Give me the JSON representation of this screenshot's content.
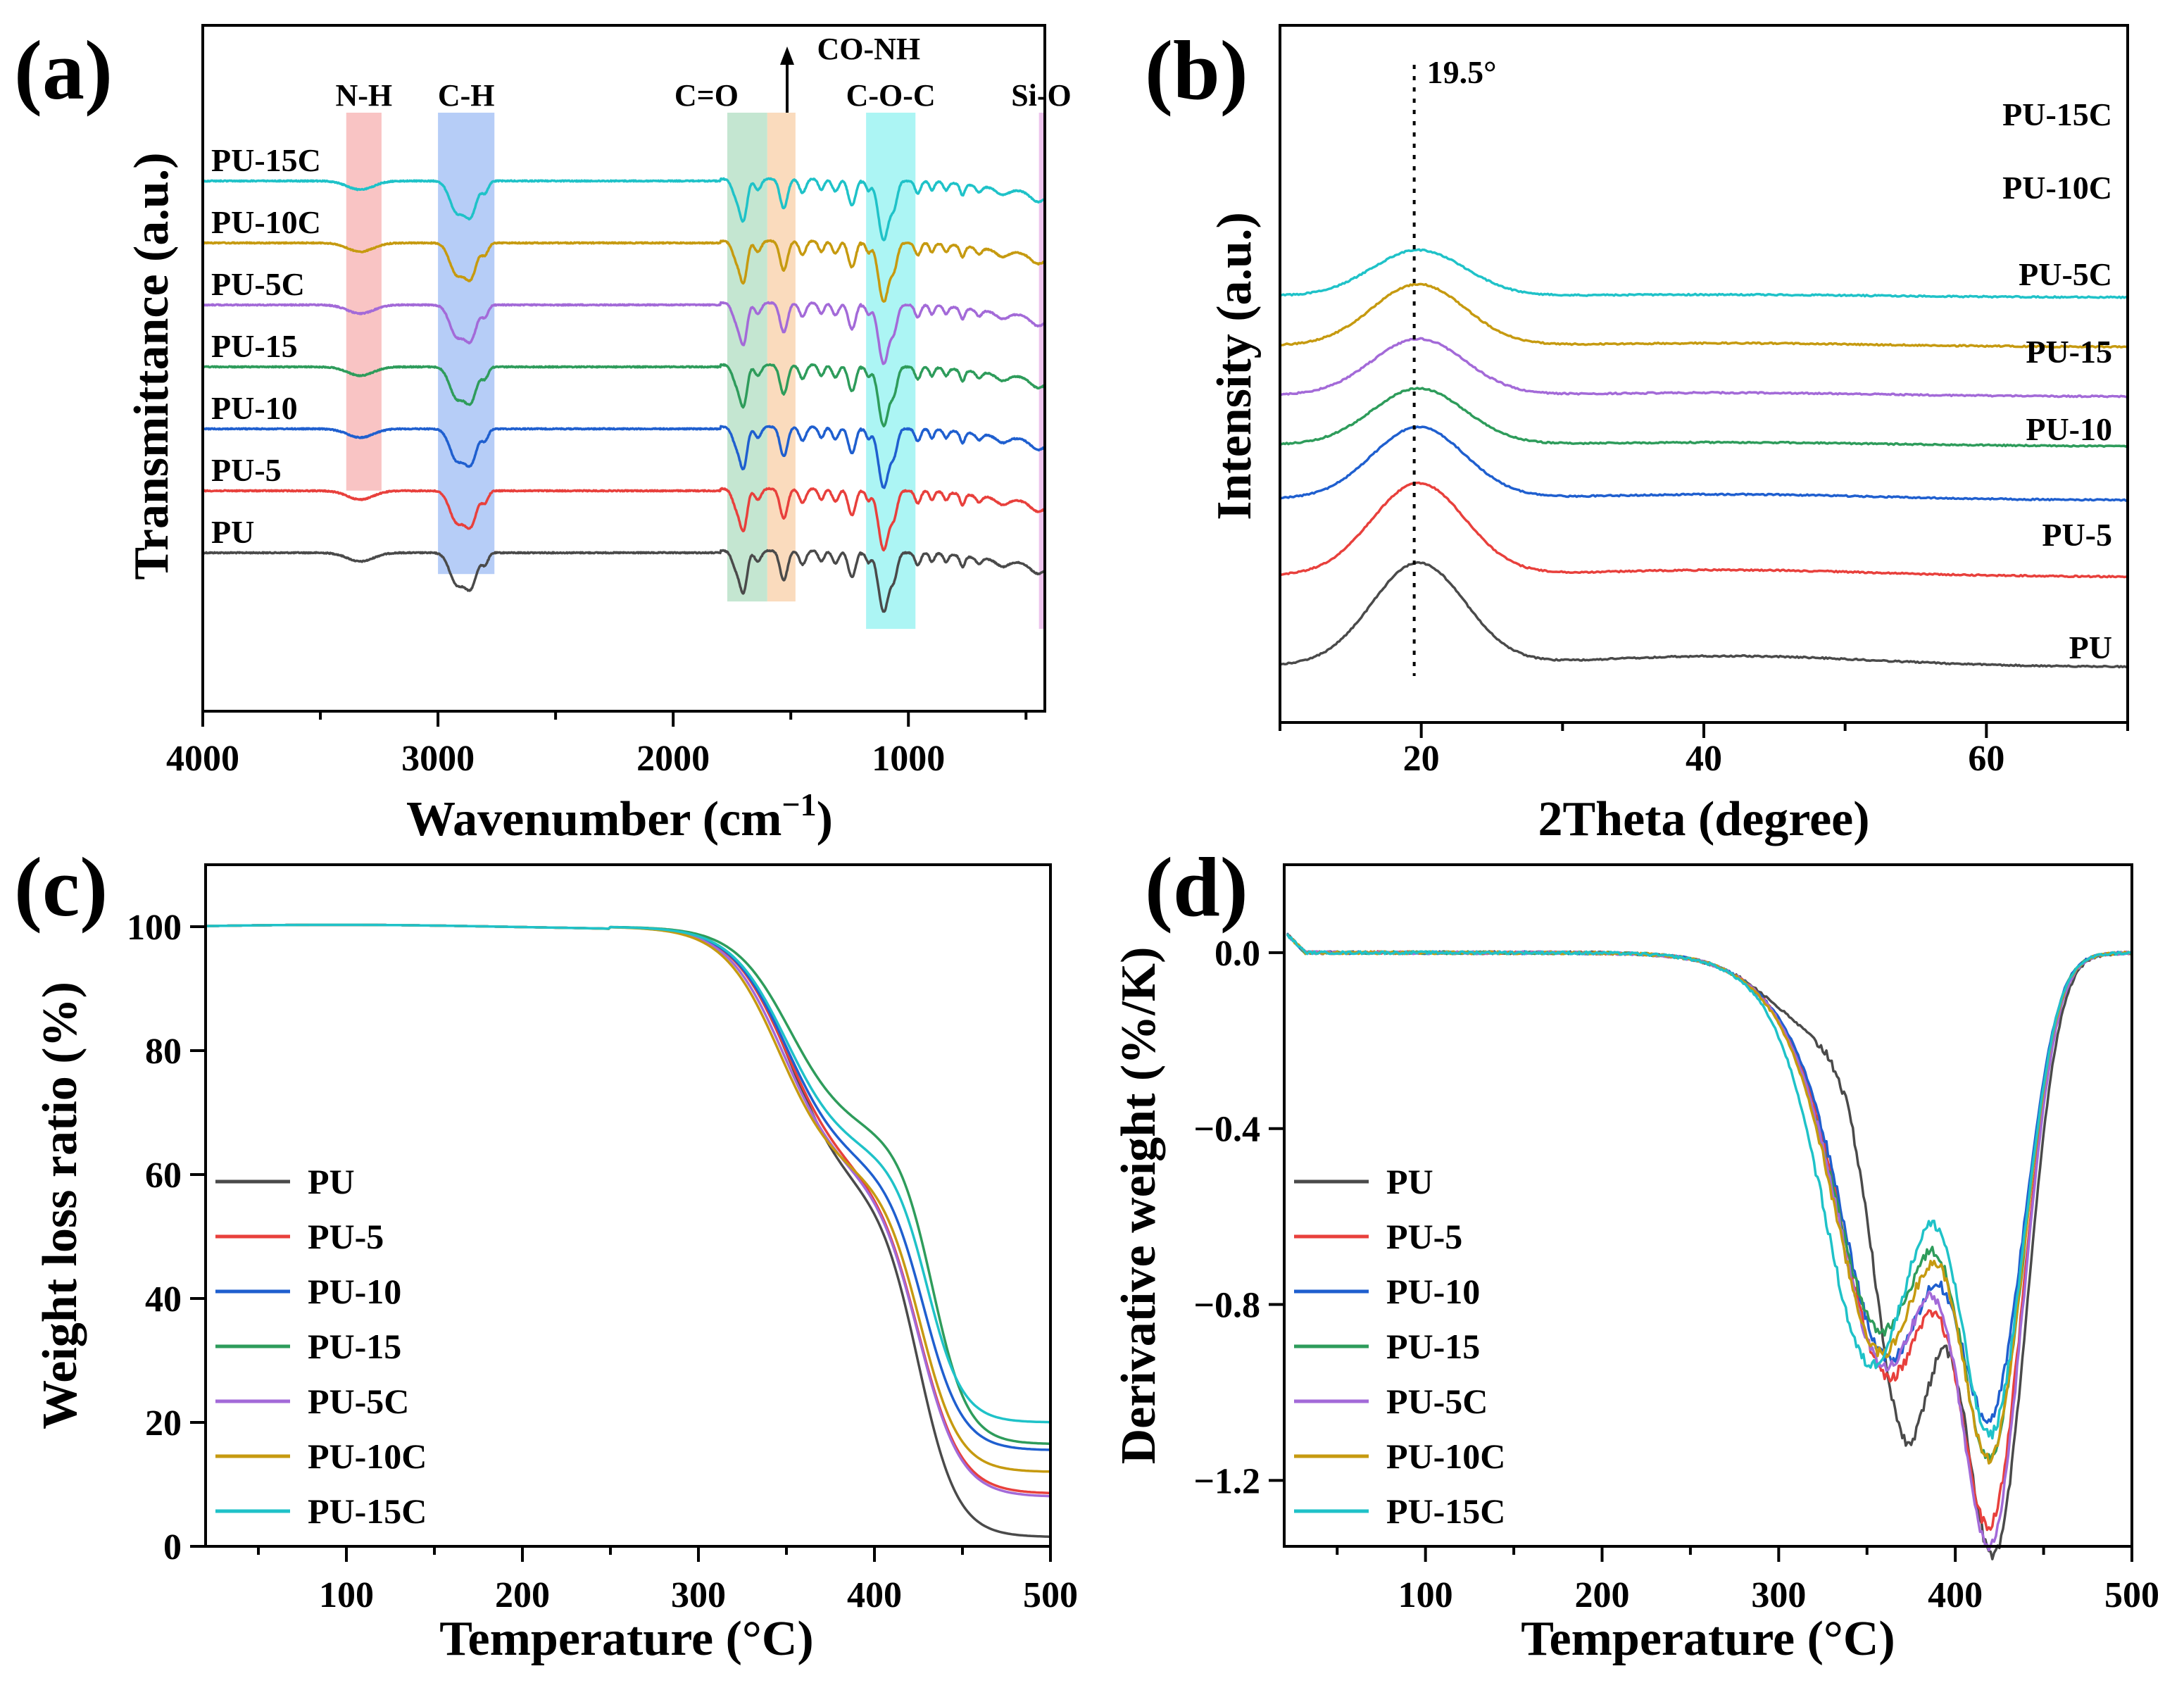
{
  "chart_data": [
    {
      "panel": "(a)",
      "type": "line",
      "xlabel": "Wavenumber (cm",
      "xlabel_sup": "−1",
      "xlabel_close": ")",
      "ylabel": "Transmittance (a.u.)",
      "xlim": [
        4000,
        420
      ],
      "xticks": [
        "4000",
        "3000",
        "2000",
        "1000"
      ],
      "x_tick_values": [
        4000,
        3000,
        2000,
        1000
      ],
      "series_names": [
        "PU",
        "PU-5",
        "PU-10",
        "PU-15",
        "PU-5C",
        "PU-10C",
        "PU-15C"
      ],
      "series_colors": [
        "#4a4a4a",
        "#e8403c",
        "#1f5fcf",
        "#2e9c5b",
        "#a36ad8",
        "#c69a10",
        "#1fc2c8"
      ],
      "series_offsets": [
        0,
        1,
        2,
        3,
        4,
        5,
        6
      ],
      "bands": [
        {
          "label": "N-H",
          "from": 3390,
          "to": 3240,
          "color": "#f6a5a5",
          "depth": 0.74
        },
        {
          "label": "C-H",
          "from": 3000,
          "to": 2760,
          "color": "#8fb2f2",
          "depth": 0.8
        },
        {
          "label": "C=O",
          "from": 1770,
          "to": 1600,
          "color": "#a5d9b8",
          "depth": 0.84
        },
        {
          "label": "CO-NH",
          "from": 1600,
          "to": 1480,
          "color": "#f8c89a",
          "depth": 0.84
        },
        {
          "label": "C-O-C",
          "from": 1180,
          "to": 970,
          "color": "#7ff0ee",
          "depth": 0.88
        },
        {
          "label": "Si-O",
          "from": 445,
          "to": 425,
          "color": "#e4a4e4",
          "depth": 0.88
        }
      ],
      "peaks": [
        {
          "pos": 3330,
          "width": 55,
          "depth": 0.28
        },
        {
          "pos": 2920,
          "width": 30,
          "depth": 1.0
        },
        {
          "pos": 2860,
          "width": 25,
          "depth": 1.05
        },
        {
          "pos": 2800,
          "width": 14,
          "depth": 0.35
        },
        {
          "pos": 1730,
          "width": 18,
          "depth": 0.6
        },
        {
          "pos": 1700,
          "width": 15,
          "depth": 1.2
        },
        {
          "pos": 1640,
          "width": 14,
          "depth": 0.35
        },
        {
          "pos": 1530,
          "width": 16,
          "depth": 0.95
        },
        {
          "pos": 1450,
          "width": 14,
          "depth": 0.45
        },
        {
          "pos": 1370,
          "width": 12,
          "depth": 0.35
        },
        {
          "pos": 1310,
          "width": 14,
          "depth": 0.4
        },
        {
          "pos": 1240,
          "width": 16,
          "depth": 0.85
        },
        {
          "pos": 1170,
          "width": 10,
          "depth": 0.3
        },
        {
          "pos": 1105,
          "width": 22,
          "depth": 1.9
        },
        {
          "pos": 1060,
          "width": 14,
          "depth": 0.7
        },
        {
          "pos": 960,
          "width": 12,
          "depth": 0.4
        },
        {
          "pos": 900,
          "width": 10,
          "depth": 0.3
        },
        {
          "pos": 840,
          "width": 10,
          "depth": 0.25
        },
        {
          "pos": 770,
          "width": 10,
          "depth": 0.35
        },
        {
          "pos": 700,
          "width": 12,
          "depth": 0.2
        },
        {
          "pos": 600,
          "width": 25,
          "depth": 0.2
        },
        {
          "pos": 450,
          "width": 30,
          "depth": 0.3
        }
      ]
    },
    {
      "panel": "(b)",
      "type": "line",
      "xlabel": "2Theta (degree)",
      "ylabel": "Intensity (a.u.)",
      "xlim": [
        10,
        70
      ],
      "xticks": [
        "20",
        "40",
        "60"
      ],
      "x_tick_values": [
        20,
        40,
        60
      ],
      "annotation": "19.5°",
      "annotation_x": 19.5,
      "series_names": [
        "PU",
        "PU-5",
        "PU-10",
        "PU-15",
        "PU-5C",
        "PU-10C",
        "PU-15C"
      ],
      "series_colors": [
        "#4a4a4a",
        "#e8403c",
        "#1f5fcf",
        "#2e9c5b",
        "#a36ad8",
        "#c69a10",
        "#1fc2c8"
      ],
      "series_offsets": [
        0,
        1.0,
        1.85,
        2.45,
        3.0,
        3.55,
        4.1
      ],
      "peak_heights": [
        1.0,
        0.9,
        0.7,
        0.55,
        0.55,
        0.6,
        0.45
      ],
      "peak_center": 19.8,
      "peak_width": 3.3,
      "broad_center": 42,
      "broad_width": 10,
      "broad_heights": [
        0.1,
        0.06,
        0.05,
        0.03,
        0.03,
        0.03,
        0.02
      ]
    },
    {
      "panel": "(c)",
      "type": "line",
      "xlabel": "Temperature (°C)",
      "ylabel": "Weight loss ratio (%)",
      "xlim": [
        20,
        500
      ],
      "ylim": [
        0,
        110
      ],
      "xticks": [
        "100",
        "200",
        "300",
        "400",
        "500"
      ],
      "x_tick_values": [
        100,
        200,
        300,
        400,
        500
      ],
      "yticks": [
        "0",
        "20",
        "40",
        "60",
        "80",
        "100"
      ],
      "y_tick_values": [
        0,
        20,
        40,
        60,
        80,
        100
      ],
      "series": [
        {
          "name": "PU",
          "color": "#4a4a4a",
          "residue": 1.5,
          "t1": 352,
          "s1": 16,
          "t2": 425,
          "s2": 11,
          "w1": 0.44
        },
        {
          "name": "PU-5",
          "color": "#e8403c",
          "residue": 8.5,
          "t1": 350,
          "s1": 16,
          "t2": 425,
          "s2": 12,
          "w1": 0.44
        },
        {
          "name": "PU-10",
          "color": "#1f5fcf",
          "residue": 15.5,
          "t1": 350,
          "s1": 16,
          "t2": 428,
          "s2": 11,
          "w1": 0.46
        },
        {
          "name": "PU-15",
          "color": "#2e9c5b",
          "residue": 16.5,
          "t1": 352,
          "s1": 16,
          "t2": 433,
          "s2": 10,
          "w1": 0.4
        },
        {
          "name": "PU-5C",
          "color": "#a36ad8",
          "residue": 8.0,
          "t1": 348,
          "s1": 16,
          "t2": 425,
          "s2": 12,
          "w1": 0.44
        },
        {
          "name": "PU-10C",
          "color": "#c69a10",
          "residue": 12.0,
          "t1": 346,
          "s1": 16,
          "t2": 426,
          "s2": 11,
          "w1": 0.46
        },
        {
          "name": "PU-15C",
          "color": "#1fc2c8",
          "residue": 20.0,
          "t1": 350,
          "s1": 16,
          "t2": 430,
          "s2": 10,
          "w1": 0.46
        }
      ]
    },
    {
      "panel": "(d)",
      "type": "line",
      "xlabel": "Temperature (°C)",
      "ylabel": "Derivative weight (%/K)",
      "xlim": [
        20,
        500
      ],
      "ylim": [
        -1.35,
        0.2
      ],
      "xticks": [
        "100",
        "200",
        "300",
        "400",
        "500"
      ],
      "x_tick_values": [
        100,
        200,
        300,
        400,
        500
      ],
      "yticks": [
        "0.0",
        "−0.4",
        "−0.8",
        "−1.2"
      ],
      "y_tick_values": [
        0.0,
        -0.4,
        -0.8,
        -1.2
      ],
      "series": [
        {
          "name": "PU",
          "color": "#4a4a4a",
          "p1": 372,
          "a1": 0.85,
          "w1": 17,
          "p2": 422,
          "a2": 1.12,
          "w2": 17
        },
        {
          "name": "PU-5",
          "color": "#e8403c",
          "p1": 362,
          "a1": 0.72,
          "w1": 24,
          "p2": 420,
          "a2": 1.02,
          "w2": 17
        },
        {
          "name": "PU-10",
          "color": "#1f5fcf",
          "p1": 362,
          "a1": 0.68,
          "w1": 24,
          "p2": 420,
          "a2": 0.78,
          "w2": 17
        },
        {
          "name": "PU-15",
          "color": "#2e9c5b",
          "p1": 358,
          "a1": 0.62,
          "w1": 24,
          "p2": 420,
          "a2": 0.88,
          "w2": 17
        },
        {
          "name": "PU-5C",
          "color": "#a36ad8",
          "p1": 360,
          "a1": 0.7,
          "w1": 24,
          "p2": 420,
          "a2": 1.07,
          "w2": 17
        },
        {
          "name": "PU-10C",
          "color": "#c69a10",
          "p1": 358,
          "a1": 0.67,
          "w1": 24,
          "p2": 420,
          "a2": 0.88,
          "w2": 17
        },
        {
          "name": "PU-15C",
          "color": "#1fc2c8",
          "p1": 352,
          "a1": 0.7,
          "w1": 24,
          "p2": 420,
          "a2": 0.84,
          "w2": 17
        }
      ]
    }
  ]
}
